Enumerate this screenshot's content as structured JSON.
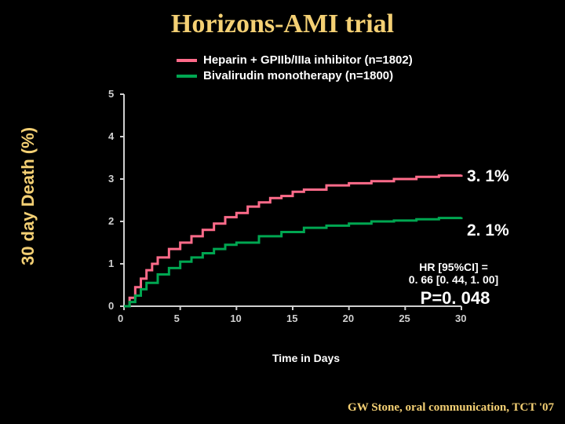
{
  "title": "Horizons-AMI trial",
  "ylabel": "30 day Death (%)",
  "xlabel": "Time in Days",
  "citation": "GW Stone, oral communication, TCT '07",
  "legend": [
    {
      "color": "#ff6b8a",
      "label": "Heparin + GPIIb/IIIa inhibitor (n=1802)"
    },
    {
      "color": "#00a651",
      "label": "Bivalirudin monotherapy (n=1800)"
    }
  ],
  "annotations": {
    "top_pct": {
      "text": "3. 1%",
      "fontsize": 21
    },
    "bot_pct": {
      "text": "2. 1%",
      "fontsize": 21
    },
    "hr_line1": {
      "text": "HR [95%CI] =",
      "fontsize": 14
    },
    "hr_line2": {
      "text": "0. 66 [0. 44, 1. 00]",
      "fontsize": 14
    },
    "pvalue": {
      "text": "P=0. 048",
      "fontsize": 22
    }
  },
  "chart": {
    "type": "step-line",
    "xlim": [
      0,
      30
    ],
    "ylim": [
      0,
      5
    ],
    "xtick_step": 5,
    "ytick_step": 1,
    "background_color": "#000000",
    "axis_color": "#d0d0d0",
    "line_width": 3,
    "tick_fontsize": 13,
    "series": [
      {
        "name": "heparin-gpiibiiia",
        "color": "#ff6b8a",
        "points": [
          [
            0,
            0
          ],
          [
            0.5,
            0.2
          ],
          [
            1,
            0.45
          ],
          [
            1.5,
            0.65
          ],
          [
            2,
            0.85
          ],
          [
            2.5,
            1.0
          ],
          [
            3,
            1.15
          ],
          [
            4,
            1.35
          ],
          [
            5,
            1.5
          ],
          [
            6,
            1.65
          ],
          [
            7,
            1.8
          ],
          [
            8,
            1.95
          ],
          [
            9,
            2.1
          ],
          [
            10,
            2.2
          ],
          [
            11,
            2.35
          ],
          [
            12,
            2.45
          ],
          [
            13,
            2.55
          ],
          [
            14,
            2.6
          ],
          [
            15,
            2.7
          ],
          [
            16,
            2.75
          ],
          [
            18,
            2.85
          ],
          [
            20,
            2.9
          ],
          [
            22,
            2.95
          ],
          [
            24,
            3.0
          ],
          [
            26,
            3.05
          ],
          [
            28,
            3.08
          ],
          [
            30,
            3.1
          ]
        ]
      },
      {
        "name": "bivalirudin",
        "color": "#00a651",
        "points": [
          [
            0,
            0
          ],
          [
            0.5,
            0.1
          ],
          [
            1,
            0.25
          ],
          [
            1.5,
            0.4
          ],
          [
            2,
            0.55
          ],
          [
            3,
            0.75
          ],
          [
            4,
            0.9
          ],
          [
            5,
            1.05
          ],
          [
            6,
            1.15
          ],
          [
            7,
            1.25
          ],
          [
            8,
            1.35
          ],
          [
            9,
            1.45
          ],
          [
            10,
            1.5
          ],
          [
            12,
            1.65
          ],
          [
            14,
            1.75
          ],
          [
            16,
            1.85
          ],
          [
            18,
            1.9
          ],
          [
            20,
            1.95
          ],
          [
            22,
            2.0
          ],
          [
            24,
            2.02
          ],
          [
            26,
            2.05
          ],
          [
            28,
            2.08
          ],
          [
            30,
            2.1
          ]
        ]
      }
    ]
  }
}
